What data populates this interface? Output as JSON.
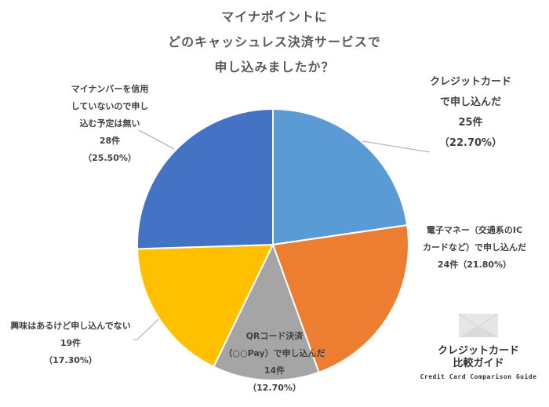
{
  "chart_data": {
    "type": "pie",
    "title": "マイナポイントにどのキャッシュレス決済サービスで申し込みましたか？",
    "title_lines": [
      "マイナポイントに",
      "どのキャッシュレス決済サービスで",
      "申し込みましたか？"
    ],
    "start_angle": "12 o'clock, clockwise",
    "slices": [
      {
        "label": "クレジットカードで申し込んだ",
        "count": 25,
        "count_label": "25件",
        "percent": 22.7,
        "percent_label": "（22.70%）",
        "color": "#5B9BD5"
      },
      {
        "label": "電子マネー（交通系のICカードなど）で申し込んだ",
        "count": 24,
        "count_label": "24件",
        "percent": 21.8,
        "percent_label": "（21.80%）",
        "color": "#ED7D31"
      },
      {
        "label": "QRコード決済（○○Pay）で申し込んだ",
        "count": 14,
        "count_label": "14件",
        "percent": 12.7,
        "percent_label": "（12.70%）",
        "color": "#A5A5A5"
      },
      {
        "label": "興味はあるけど申し込んでない",
        "count": 19,
        "count_label": "19件",
        "percent": 17.3,
        "percent_label": "（17.30%）",
        "color": "#FFC000"
      },
      {
        "label": "マイナンバーを信用していないので申し込む予定は無い",
        "count": 28,
        "count_label": "28件",
        "percent": 25.5,
        "percent_label": "（25.50%）",
        "color": "#4472C4"
      }
    ],
    "legend": "none (data labels)"
  },
  "labels": {
    "credit": {
      "l1": "クレジットカード",
      "l2": "で申し込んだ",
      "l3": "25件",
      "l4": "（22.70%）"
    },
    "emoney": {
      "l1": "電子マネー（交通系のIC",
      "l2": "カードなど）で申し込んだ",
      "l3": "24件（21.80%）"
    },
    "qr": {
      "l1": "QRコード決済",
      "l2": "（○○Pay）で申し込んだ",
      "l3": "14件",
      "l4": "（12.70%）"
    },
    "interested": {
      "l1": "興味はあるけど申し込んでない",
      "l2": "19件",
      "l3": "（17.30%）"
    },
    "distrust": {
      "l1": "マイナンバーを信用",
      "l2": "していないので申し",
      "l3": "込む予定は無い",
      "l4": "28件",
      "l5": "（25.50%）"
    }
  },
  "logo": {
    "jp_line1": "クレジットカード",
    "jp_line2": "比較ガイド",
    "en": "Credit Card Comparison Guide"
  }
}
